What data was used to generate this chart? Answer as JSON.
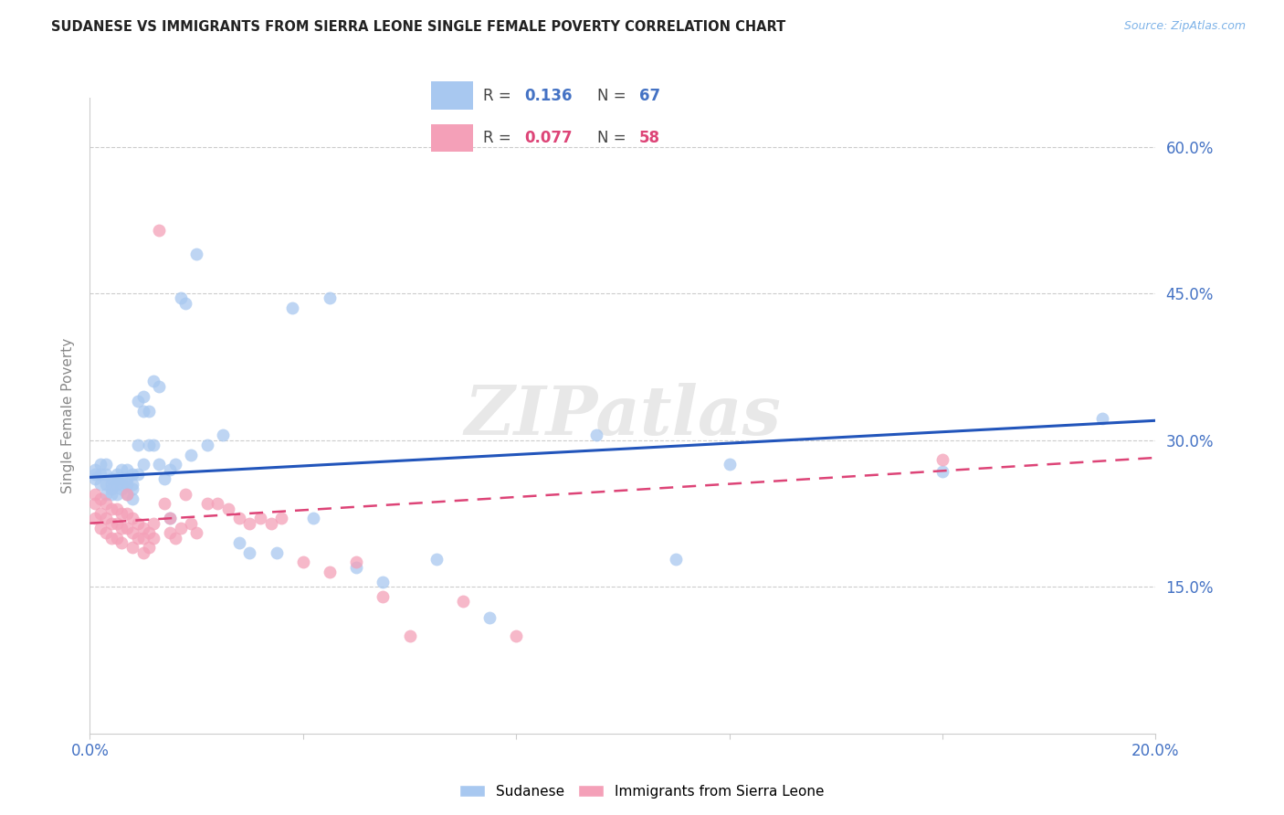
{
  "title": "SUDANESE VS IMMIGRANTS FROM SIERRA LEONE SINGLE FEMALE POVERTY CORRELATION CHART",
  "source": "Source: ZipAtlas.com",
  "ylabel": "Single Female Poverty",
  "x_min": 0.0,
  "x_max": 0.2,
  "y_min": 0.0,
  "y_max": 0.65,
  "x_ticks": [
    0.0,
    0.04,
    0.08,
    0.12,
    0.16,
    0.2
  ],
  "right_y_ticks": [
    0.15,
    0.3,
    0.45,
    0.6
  ],
  "right_y_tick_labels": [
    "15.0%",
    "30.0%",
    "45.0%",
    "60.0%"
  ],
  "legend_R1": "0.136",
  "legend_N1": "67",
  "legend_R2": "0.077",
  "legend_N2": "58",
  "color_blue": "#a8c8f0",
  "color_pink": "#f4a0b8",
  "color_line_blue": "#2255bb",
  "color_line_pink": "#dd4477",
  "watermark": "ZIPatlas",
  "sudanese_x": [
    0.001,
    0.001,
    0.001,
    0.002,
    0.002,
    0.002,
    0.003,
    0.003,
    0.003,
    0.003,
    0.004,
    0.004,
    0.004,
    0.004,
    0.005,
    0.005,
    0.005,
    0.005,
    0.006,
    0.006,
    0.006,
    0.006,
    0.007,
    0.007,
    0.007,
    0.007,
    0.008,
    0.008,
    0.008,
    0.008,
    0.009,
    0.009,
    0.009,
    0.01,
    0.01,
    0.01,
    0.011,
    0.011,
    0.012,
    0.012,
    0.013,
    0.013,
    0.014,
    0.015,
    0.015,
    0.016,
    0.017,
    0.018,
    0.019,
    0.02,
    0.022,
    0.025,
    0.028,
    0.03,
    0.035,
    0.038,
    0.042,
    0.045,
    0.05,
    0.055,
    0.065,
    0.075,
    0.095,
    0.11,
    0.12,
    0.16,
    0.19
  ],
  "sudanese_y": [
    0.27,
    0.265,
    0.26,
    0.275,
    0.265,
    0.255,
    0.275,
    0.265,
    0.255,
    0.245,
    0.26,
    0.255,
    0.25,
    0.245,
    0.265,
    0.26,
    0.255,
    0.245,
    0.27,
    0.26,
    0.255,
    0.25,
    0.27,
    0.26,
    0.255,
    0.245,
    0.265,
    0.255,
    0.25,
    0.24,
    0.34,
    0.295,
    0.265,
    0.345,
    0.33,
    0.275,
    0.33,
    0.295,
    0.36,
    0.295,
    0.355,
    0.275,
    0.26,
    0.27,
    0.22,
    0.275,
    0.445,
    0.44,
    0.285,
    0.49,
    0.295,
    0.305,
    0.195,
    0.185,
    0.185,
    0.435,
    0.22,
    0.445,
    0.17,
    0.155,
    0.178,
    0.118,
    0.305,
    0.178,
    0.275,
    0.268,
    0.322
  ],
  "sierraleone_x": [
    0.001,
    0.001,
    0.001,
    0.002,
    0.002,
    0.002,
    0.003,
    0.003,
    0.003,
    0.004,
    0.004,
    0.004,
    0.005,
    0.005,
    0.005,
    0.006,
    0.006,
    0.006,
    0.007,
    0.007,
    0.007,
    0.008,
    0.008,
    0.008,
    0.009,
    0.009,
    0.01,
    0.01,
    0.01,
    0.011,
    0.011,
    0.012,
    0.012,
    0.013,
    0.014,
    0.015,
    0.015,
    0.016,
    0.017,
    0.018,
    0.019,
    0.02,
    0.022,
    0.024,
    0.026,
    0.028,
    0.03,
    0.032,
    0.034,
    0.036,
    0.04,
    0.045,
    0.05,
    0.055,
    0.06,
    0.07,
    0.08,
    0.16
  ],
  "sierraleone_y": [
    0.245,
    0.235,
    0.22,
    0.24,
    0.225,
    0.21,
    0.235,
    0.22,
    0.205,
    0.23,
    0.215,
    0.2,
    0.23,
    0.215,
    0.2,
    0.225,
    0.21,
    0.195,
    0.245,
    0.225,
    0.21,
    0.22,
    0.205,
    0.19,
    0.215,
    0.2,
    0.21,
    0.2,
    0.185,
    0.205,
    0.19,
    0.215,
    0.2,
    0.515,
    0.235,
    0.22,
    0.205,
    0.2,
    0.21,
    0.245,
    0.215,
    0.205,
    0.235,
    0.235,
    0.23,
    0.22,
    0.215,
    0.22,
    0.215,
    0.22,
    0.175,
    0.165,
    0.175,
    0.14,
    0.1,
    0.135,
    0.1,
    0.28
  ]
}
